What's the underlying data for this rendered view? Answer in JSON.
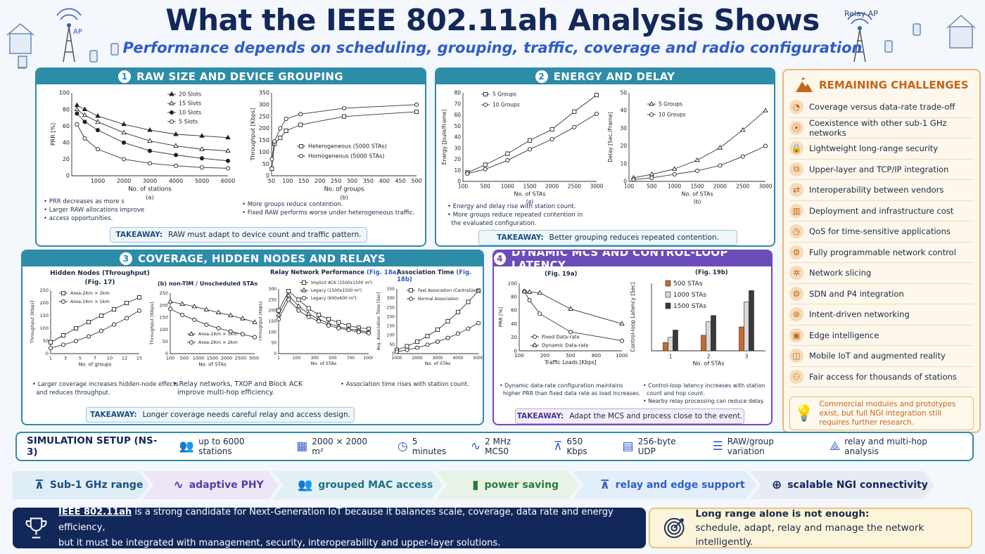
{
  "header": {
    "title": "What the IEEE 802.11ah Analysis Shows",
    "subtitle": "Performance depends on scheduling, grouping, traffic, coverage and radio configuration",
    "ap_label": "AP",
    "relay_label": "Relay AP"
  },
  "panel1": {
    "number": "1",
    "title": "RAW SIZE AND DEVICE GROUPING",
    "chart_a_caption": "(a)",
    "chart_b_caption": "(b)",
    "bullets_a": [
      "PRR decreases as more s",
      "Larger RAW allocations improve",
      "access opportunities."
    ],
    "bullets_b": [
      "More groups reduce contention.",
      "Fixed RAW performs worse under heterogeneous traffic."
    ],
    "takeaway_key": "TAKEAWAY:",
    "takeaway": "RAW must adapt to device count and traffic pattern."
  },
  "panel2": {
    "number": "2",
    "title": "ENERGY AND DELAY",
    "chart_a_caption": "(a)",
    "chart_b_caption": "(b)",
    "bullets": [
      "Energy and delay rise with station count.",
      "More groups reduce repeated contention in",
      "the evaluated configuration."
    ],
    "takeaway_key": "TAKEAWAY:",
    "takeaway": "Better grouping reduces repeated contention."
  },
  "panel3": {
    "number": "3",
    "title": "COVERAGE, HIDDEN NODES AND RELAYS",
    "chart1_title": "Hidden Nodes (Throughput)",
    "chart1_sub": "(Fig. 17)",
    "chart2_title": "(b) non-TIM / Unscheduled STAs",
    "chart3_title": "Relay Network Performance",
    "chart3_fig": "(Fig. 18a)",
    "chart4_title": "Association Time",
    "chart4_fig": "(Fig. 18b)",
    "bullets": [
      "Larger coverage increases hidden-node effects",
      "and reduces throughput.",
      "Relay networks, TXOP and Block ACK",
      "improve multi-hop efficiency.",
      "Association time rises with station count."
    ],
    "takeaway_key": "TAKEAWAY:",
    "takeaway": "Longer coverage needs careful relay and access design."
  },
  "panel4": {
    "number": "4",
    "title": "DYNAMIC MCS AND CONTROL-LOOP LATENCY",
    "chart1_fig": "(Fig. 19a)",
    "chart2_fig": "(Fig. 19b)",
    "bullets_a": [
      "Dynamic data-rate configuration maintains",
      "higher PRR than fixed data rate as load increases."
    ],
    "bullets_b": [
      "Control-loop latency increases with station",
      "count and hop count.",
      "Nearby relay processing can reduce delay."
    ],
    "takeaway_key": "TAKEAWAY:",
    "takeaway": "Adapt the MCS and process close to the event."
  },
  "challenges": {
    "title": "REMAINING CHALLENGES",
    "items": [
      {
        "label": "Coverage versus data-rate trade-off",
        "icon": "signal-icon"
      },
      {
        "label": "Coexistence with other sub-1 GHz networks",
        "icon": "antenna-icon"
      },
      {
        "label": "Lightweight long-range security",
        "icon": "lock-icon"
      },
      {
        "label": "Upper-layer and TCP/IP integration",
        "icon": "network-icon"
      },
      {
        "label": "Interoperability between vendors",
        "icon": "handshake-icon"
      },
      {
        "label": "Deployment and infrastructure cost",
        "icon": "cost-chart-icon"
      },
      {
        "label": "QoS for time-sensitive applications",
        "icon": "clock-icon"
      },
      {
        "label": "Fully programmable network control",
        "icon": "gear-icon"
      },
      {
        "label": "Network slicing",
        "icon": "slicing-icon"
      },
      {
        "label": "SDN and P4 integration",
        "icon": "sdn-icon"
      },
      {
        "label": "Intent-driven networking",
        "icon": "intent-icon"
      },
      {
        "label": "Edge intelligence",
        "icon": "chip-icon"
      },
      {
        "label": "Mobile IoT and augmented reality",
        "icon": "mobile-icon"
      },
      {
        "label": "Fair access for thousands of stations",
        "icon": "users-icon"
      }
    ],
    "note": "Commercial modules and prototypes exist, but full NGI integration still requires further research."
  },
  "simulation": {
    "title": "SIMULATION SETUP (NS-3)",
    "items": [
      {
        "label": "up to 6000 stations",
        "icon": "stations-icon"
      },
      {
        "label": "2000 × 2000 m²",
        "icon": "map-icon"
      },
      {
        "label": "5 minutes",
        "icon": "clock-icon"
      },
      {
        "label": "2 MHz MCS0",
        "icon": "waveform-icon"
      },
      {
        "label": "650 Kbps",
        "icon": "tower-icon"
      },
      {
        "label": "256-byte UDP",
        "icon": "document-icon"
      },
      {
        "label": "RAW/group variation",
        "icon": "sliders-icon"
      },
      {
        "label": "relay and multi-hop analysis",
        "icon": "multihop-icon"
      }
    ]
  },
  "flow": [
    {
      "label": "Sub-1 GHz range",
      "icon": "tower-icon"
    },
    {
      "label": "adaptive PHY",
      "icon": "waveform-icon"
    },
    {
      "label": "grouped MAC access",
      "icon": "group-icon"
    },
    {
      "label": "power saving",
      "icon": "battery-icon"
    },
    {
      "label": "relay and edge support",
      "icon": "relay-icon"
    },
    {
      "label": "scalable NGI connectivity",
      "icon": "globe-icon"
    }
  ],
  "conclusion": {
    "term": "IEEE 802.11ah",
    "line1": " is a strong candidate for Next-Generation IoT because it balances scale, coverage, data rate and energy efficiency,",
    "line2": "but it must be integrated with management, security, interoperability and upper-layer solutions.",
    "right_title": "Long range alone is not enough:",
    "right_text": "schedule, adapt, relay and manage the network intelligently."
  },
  "colors": {
    "teal": "#2d8ca8",
    "purple": "#6c4cb8",
    "navy": "#13285a",
    "orange": "#c5651b"
  },
  "chart_data": [
    {
      "type": "line",
      "id": "raw_prr",
      "xlabel": "No. of stations",
      "ylabel": "PRR [%]",
      "x": [
        200,
        500,
        1000,
        2000,
        3000,
        4000,
        5000,
        6000
      ],
      "xticks": [
        "1000",
        "2000",
        "3000",
        "4000",
        "5000",
        "6000"
      ],
      "yticks": [
        "0",
        "20",
        "40",
        "60",
        "80",
        "100"
      ],
      "xlim": [
        0,
        6000
      ],
      "ylim": [
        0,
        100
      ],
      "series": [
        {
          "name": "20 Slots",
          "marker": "triangle-filled",
          "values": [
            85,
            80,
            72,
            62,
            55,
            50,
            48,
            46
          ]
        },
        {
          "name": "15 Slots",
          "marker": "triangle-open",
          "values": [
            80,
            73,
            65,
            52,
            42,
            36,
            32,
            30
          ]
        },
        {
          "name": "10 Slots",
          "marker": "circle-filled",
          "values": [
            75,
            65,
            55,
            40,
            30,
            25,
            21,
            18
          ]
        },
        {
          "name": "5 Slots",
          "marker": "circle-open",
          "values": [
            62,
            45,
            32,
            20,
            15,
            12,
            10,
            9
          ]
        }
      ]
    },
    {
      "type": "line",
      "id": "raw_groups",
      "xlabel": "No. of groups",
      "ylabel": "Throughput [Kbps]",
      "x": [
        1,
        10,
        30,
        50,
        100,
        250,
        500
      ],
      "xticks": [
        "50",
        "100",
        "150",
        "200",
        "250",
        "300",
        "350",
        "400",
        "450",
        "500"
      ],
      "yticks": [
        "0",
        "50",
        "100",
        "150",
        "200",
        "250",
        "300",
        "350"
      ],
      "xlim": [
        0,
        500
      ],
      "ylim": [
        0,
        350
      ],
      "series": [
        {
          "name": "Heterogeneous (5000 STAs)",
          "marker": "square-open",
          "values": [
            30,
            135,
            160,
            190,
            215,
            250,
            270
          ]
        },
        {
          "name": "Homogeneous (5000 STAs)",
          "marker": "circle-open",
          "values": [
            70,
            145,
            200,
            240,
            260,
            285,
            300
          ]
        }
      ]
    },
    {
      "type": "line",
      "id": "energy",
      "xlabel": "No. of STAs",
      "ylabel": "Energy [Joule/Frame]",
      "x": [
        100,
        500,
        1000,
        1500,
        2000,
        2500,
        3000
      ],
      "yticks": [
        "0",
        "10",
        "20",
        "30",
        "40",
        "50",
        "60",
        "70",
        "80"
      ],
      "xlim": [
        0,
        3000
      ],
      "ylim": [
        0,
        80
      ],
      "series": [
        {
          "name": "5 Groups",
          "marker": "square-open",
          "values": [
            8,
            15,
            25,
            37,
            47,
            63,
            78
          ]
        },
        {
          "name": "10 Groups",
          "marker": "circle-open",
          "values": [
            7,
            11,
            19,
            29,
            38,
            49,
            61
          ]
        }
      ]
    },
    {
      "type": "line",
      "id": "delay",
      "xlabel": "No. of STAs",
      "ylabel": "Delay [Sec./Frame]",
      "x": [
        100,
        500,
        1000,
        1500,
        2000,
        2500,
        3000
      ],
      "yticks": [
        "0",
        "10",
        "20",
        "30",
        "40",
        "50"
      ],
      "xlim": [
        0,
        3000
      ],
      "ylim": [
        0,
        50
      ],
      "series": [
        {
          "name": "5 Groups",
          "marker": "triangle-open",
          "values": [
            2,
            4,
            7,
            12,
            19,
            29,
            40
          ]
        },
        {
          "name": "10 Groups",
          "marker": "circle-open",
          "values": [
            1,
            2,
            4,
            6,
            9,
            14,
            20
          ]
        }
      ]
    },
    {
      "type": "line",
      "id": "hidden_nodes",
      "xlabel": "No. of groups",
      "ylabel": "Throughput [Kbps]",
      "x": [
        1,
        3,
        5,
        7,
        9,
        11,
        13,
        15
      ],
      "xticks": [
        "1",
        "3",
        "5",
        "7",
        "10",
        "12",
        "15"
      ],
      "yticks": [
        "0",
        "50",
        "100",
        "150",
        "200",
        "250"
      ],
      "ylim": [
        0,
        250
      ],
      "series": [
        {
          "name": "Area-2Km × 2km",
          "marker": "square-open",
          "values": [
            45,
            72,
            100,
            125,
            150,
            175,
            200,
            222
          ]
        },
        {
          "name": "Area-1Km × 1km",
          "marker": "circle-open",
          "values": [
            22,
            35,
            50,
            68,
            90,
            115,
            140,
            170
          ]
        }
      ]
    },
    {
      "type": "line",
      "id": "non_tim",
      "xlabel": "No. of STAs",
      "ylabel": "Throughput [Kbps]",
      "xticks": [
        "100",
        "500",
        "1000",
        "1500",
        "2000",
        "2500",
        "3000"
      ],
      "yticks": [
        "0",
        "50",
        "100",
        "150",
        "200",
        "250"
      ],
      "ylim": [
        0,
        250
      ],
      "series": [
        {
          "name": "Area-1Km × 1km",
          "marker": "triangle-open",
          "values": [
            215,
            205,
            195,
            182,
            170,
            158,
            145,
            130
          ]
        },
        {
          "name": "Area-2Km × 2km",
          "marker": "circle-open",
          "values": [
            185,
            160,
            140,
            120,
            105,
            92,
            80,
            68
          ]
        }
      ]
    },
    {
      "type": "line",
      "id": "relay",
      "xlabel": "No. of STAs",
      "ylabel": "Throughput [Kbps]",
      "xticks": [
        "1",
        "100",
        "300",
        "500",
        "700",
        "1000"
      ],
      "yticks": [
        "0",
        "50",
        "100",
        "150",
        "200",
        "250",
        "300"
      ],
      "ylim": [
        0,
        300
      ],
      "series": [
        {
          "name": "Implicit ACK (1500x1500 m²)",
          "marker": "square-open",
          "values": [
            200,
            290,
            250,
            210,
            180,
            160,
            145,
            130,
            120,
            115
          ]
        },
        {
          "name": "Legacy (1500x1500 m²)",
          "marker": "triangle-open",
          "values": [
            180,
            270,
            220,
            185,
            160,
            140,
            125,
            115,
            108,
            100
          ]
        },
        {
          "name": "Legacy (600x600 m²)",
          "marker": "circle-open",
          "values": [
            160,
            250,
            200,
            170,
            150,
            130,
            118,
            110,
            100,
            95
          ]
        }
      ]
    },
    {
      "type": "line",
      "id": "association",
      "xlabel": "No. of STAs",
      "ylabel": "Avg. Association Time [Sec]",
      "xticks": [
        "1000",
        "2000",
        "3000",
        "4000",
        "5000"
      ],
      "yticks": [
        "0",
        "50",
        "100",
        "150",
        "200",
        "250",
        "300",
        "350"
      ],
      "ylim": [
        0,
        350
      ],
      "series": [
        {
          "name": "Fast Association (Centralized)",
          "marker": "square-open",
          "values": [
            20,
            40,
            65,
            95,
            130,
            175,
            225,
            280,
            340
          ]
        },
        {
          "name": "Normal Association",
          "marker": "circle-open",
          "values": [
            10,
            20,
            32,
            48,
            65,
            85,
            108,
            135,
            165
          ]
        }
      ]
    },
    {
      "type": "line",
      "id": "mcs_prr",
      "xlabel": "Traffic Loads [Kbps]",
      "ylabel": "PRR [%]",
      "x": [
        50,
        100,
        200,
        500,
        1000
      ],
      "xticks": [
        "100",
        "200",
        "500",
        "800",
        "1000"
      ],
      "yticks": [
        "0",
        "20",
        "40",
        "60",
        "80",
        "100"
      ],
      "ylim": [
        0,
        100
      ],
      "series": [
        {
          "name": "Fixed Data-rate",
          "marker": "circle-open",
          "values": [
            88,
            75,
            55,
            28,
            15
          ]
        },
        {
          "name": "Dynamic Data-rate",
          "marker": "triangle-open",
          "values": [
            88,
            87,
            86,
            62,
            40
          ]
        }
      ]
    },
    {
      "type": "bar",
      "id": "latency",
      "xlabel": "No. of STAs",
      "ylabel": "Control-loop Latency [Sec]",
      "categories": [
        "1",
        "2",
        "3"
      ],
      "series": [
        {
          "name": "500 STAs",
          "values": [
            0.8,
            1.5,
            2.3
          ]
        },
        {
          "name": "1000 STAs",
          "values": [
            1.3,
            2.8,
            4.7
          ]
        },
        {
          "name": "1500 STAs",
          "values": [
            2.0,
            3.4,
            5.8
          ]
        }
      ]
    }
  ]
}
